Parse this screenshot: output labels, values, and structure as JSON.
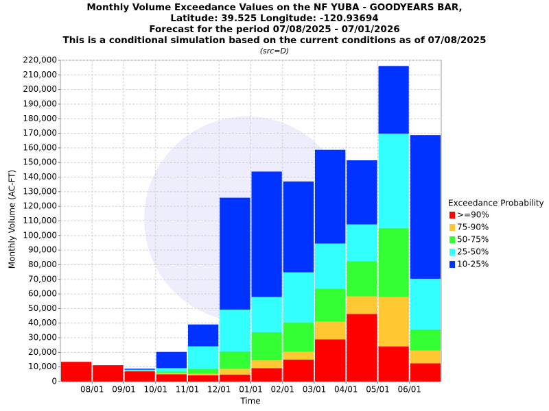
{
  "chart_data": {
    "type": "stacked_bar",
    "title": [
      "Monthly Volume Exceedance Values on the NF YUBA - GOODYEARS BAR,",
      "Latitude: 39.525 Longitude: -120.93694",
      "Forecast for the period 07/08/2025 - 07/01/2026",
      "This is a conditional simulation based on the current conditions as of 07/08/2025"
    ],
    "subtitle": "(src=D)",
    "y_label": "Monthly Volume (AC-FT)",
    "x_label": "Time",
    "legend_title": "Exceedance Probability",
    "categories": [
      null,
      "08/01",
      "09/01",
      "10/01",
      "11/01",
      "12/01",
      "01/01",
      "02/01",
      "03/01",
      "04/01",
      "05/01",
      "06/01"
    ],
    "series": [
      {
        "name": ">=90%",
        "color": "#ff0000",
        "values": [
          13500,
          11200,
          7000,
          5000,
          4300,
          4800,
          9200,
          15000,
          28900,
          46300,
          24100,
          12500
        ]
      },
      {
        "name": "75-90%",
        "color": "#ffc832",
        "values": [
          0,
          0,
          300,
          800,
          1000,
          3900,
          5300,
          5300,
          12100,
          12100,
          33800,
          8700
        ]
      },
      {
        "name": "50-75%",
        "color": "#33ff33",
        "values": [
          0,
          0,
          300,
          1000,
          3400,
          12000,
          19300,
          20200,
          22700,
          24100,
          47300,
          14500
        ]
      },
      {
        "name": "25-50%",
        "color": "#33ffff",
        "values": [
          0,
          0,
          500,
          2400,
          15400,
          28500,
          24100,
          34300,
          30800,
          25100,
          64600,
          34700
        ]
      },
      {
        "name": "10-25%",
        "color": "#0033ff",
        "values": [
          0,
          0,
          700,
          11100,
          15000,
          76700,
          85900,
          62200,
          64200,
          43900,
          46300,
          98400
        ]
      }
    ],
    "ylim": [
      0,
      220000
    ],
    "yticks": [
      0,
      {
        "value": 10000,
        "label": "10,000"
      },
      {
        "value": 20000,
        "label": "20,000"
      },
      {
        "value": 30000,
        "label": "30,000"
      },
      {
        "value": 40000,
        "label": "40,000"
      },
      {
        "value": 50000,
        "label": "50,000"
      },
      {
        "value": 60000,
        "label": "60,000"
      },
      {
        "value": 70000,
        "label": "70,000"
      },
      {
        "value": 80000,
        "label": "80,000"
      },
      {
        "value": 90000,
        "label": "90,000"
      },
      {
        "value": 100000,
        "label": "100,000"
      },
      {
        "value": 110000,
        "label": "110,000"
      },
      {
        "value": 120000,
        "label": "120,000"
      },
      {
        "value": 130000,
        "label": "130,000"
      },
      {
        "value": 140000,
        "label": "140,000"
      },
      {
        "value": 150000,
        "label": "150,000"
      },
      {
        "value": 160000,
        "label": "160,000"
      },
      {
        "value": 170000,
        "label": "170,000"
      },
      {
        "value": 180000,
        "label": "180,000"
      },
      {
        "value": 190000,
        "label": "190,000"
      },
      {
        "value": 200000,
        "label": "200,000"
      },
      {
        "value": 210000,
        "label": "210,000"
      },
      {
        "value": 220000,
        "label": "220,000"
      }
    ],
    "grid": true
  }
}
